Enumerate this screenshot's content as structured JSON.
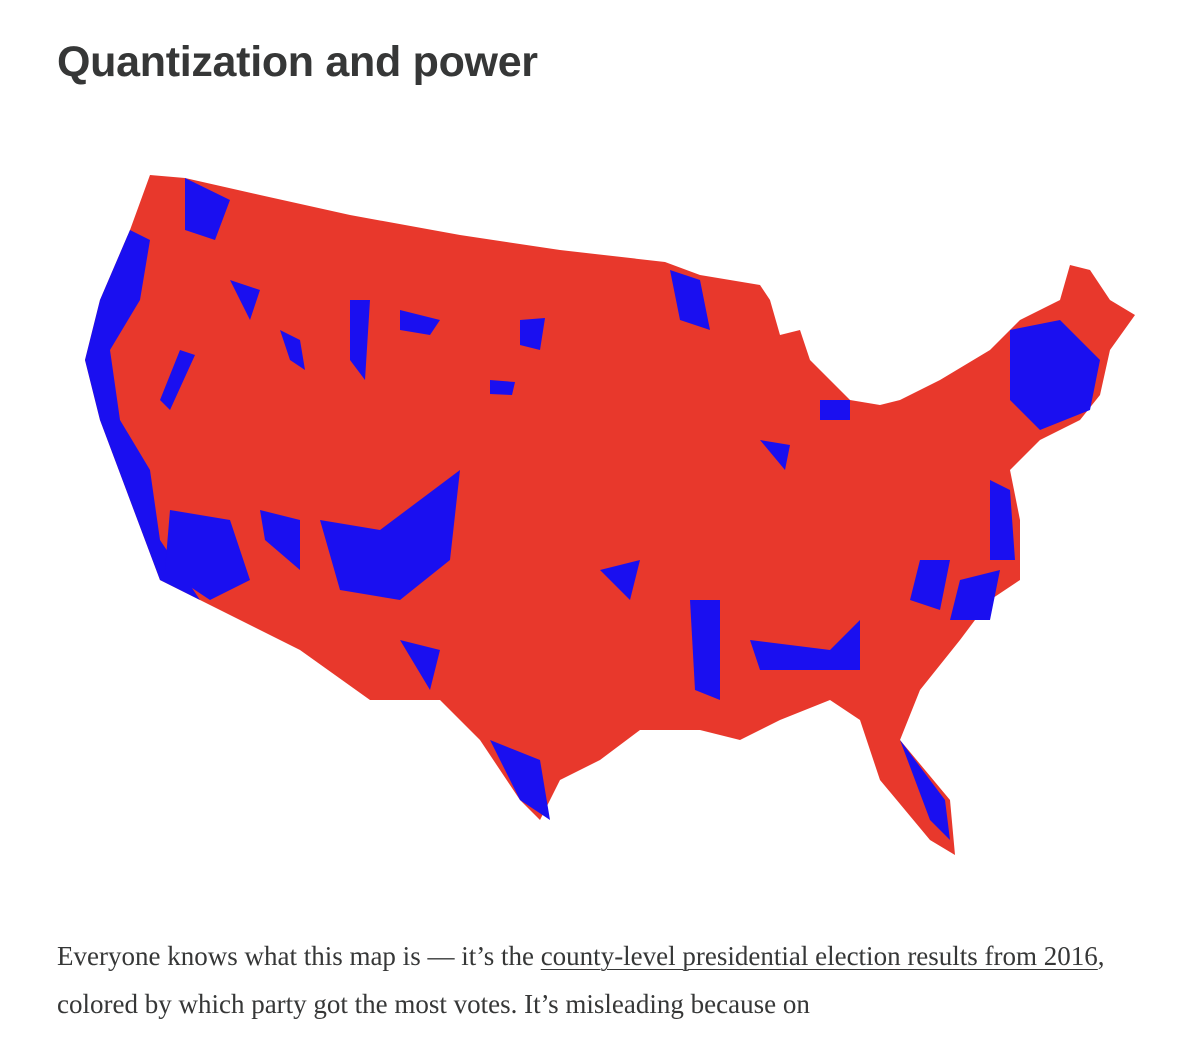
{
  "header": {
    "title": "Quantization and power"
  },
  "paragraph": {
    "text_before": "Everyone knows what this map is — it’s the ",
    "link": "county-level presidential election results from 2016",
    "text_after": ", colored by which party got the most votes. It’s misleading because on"
  }
}
